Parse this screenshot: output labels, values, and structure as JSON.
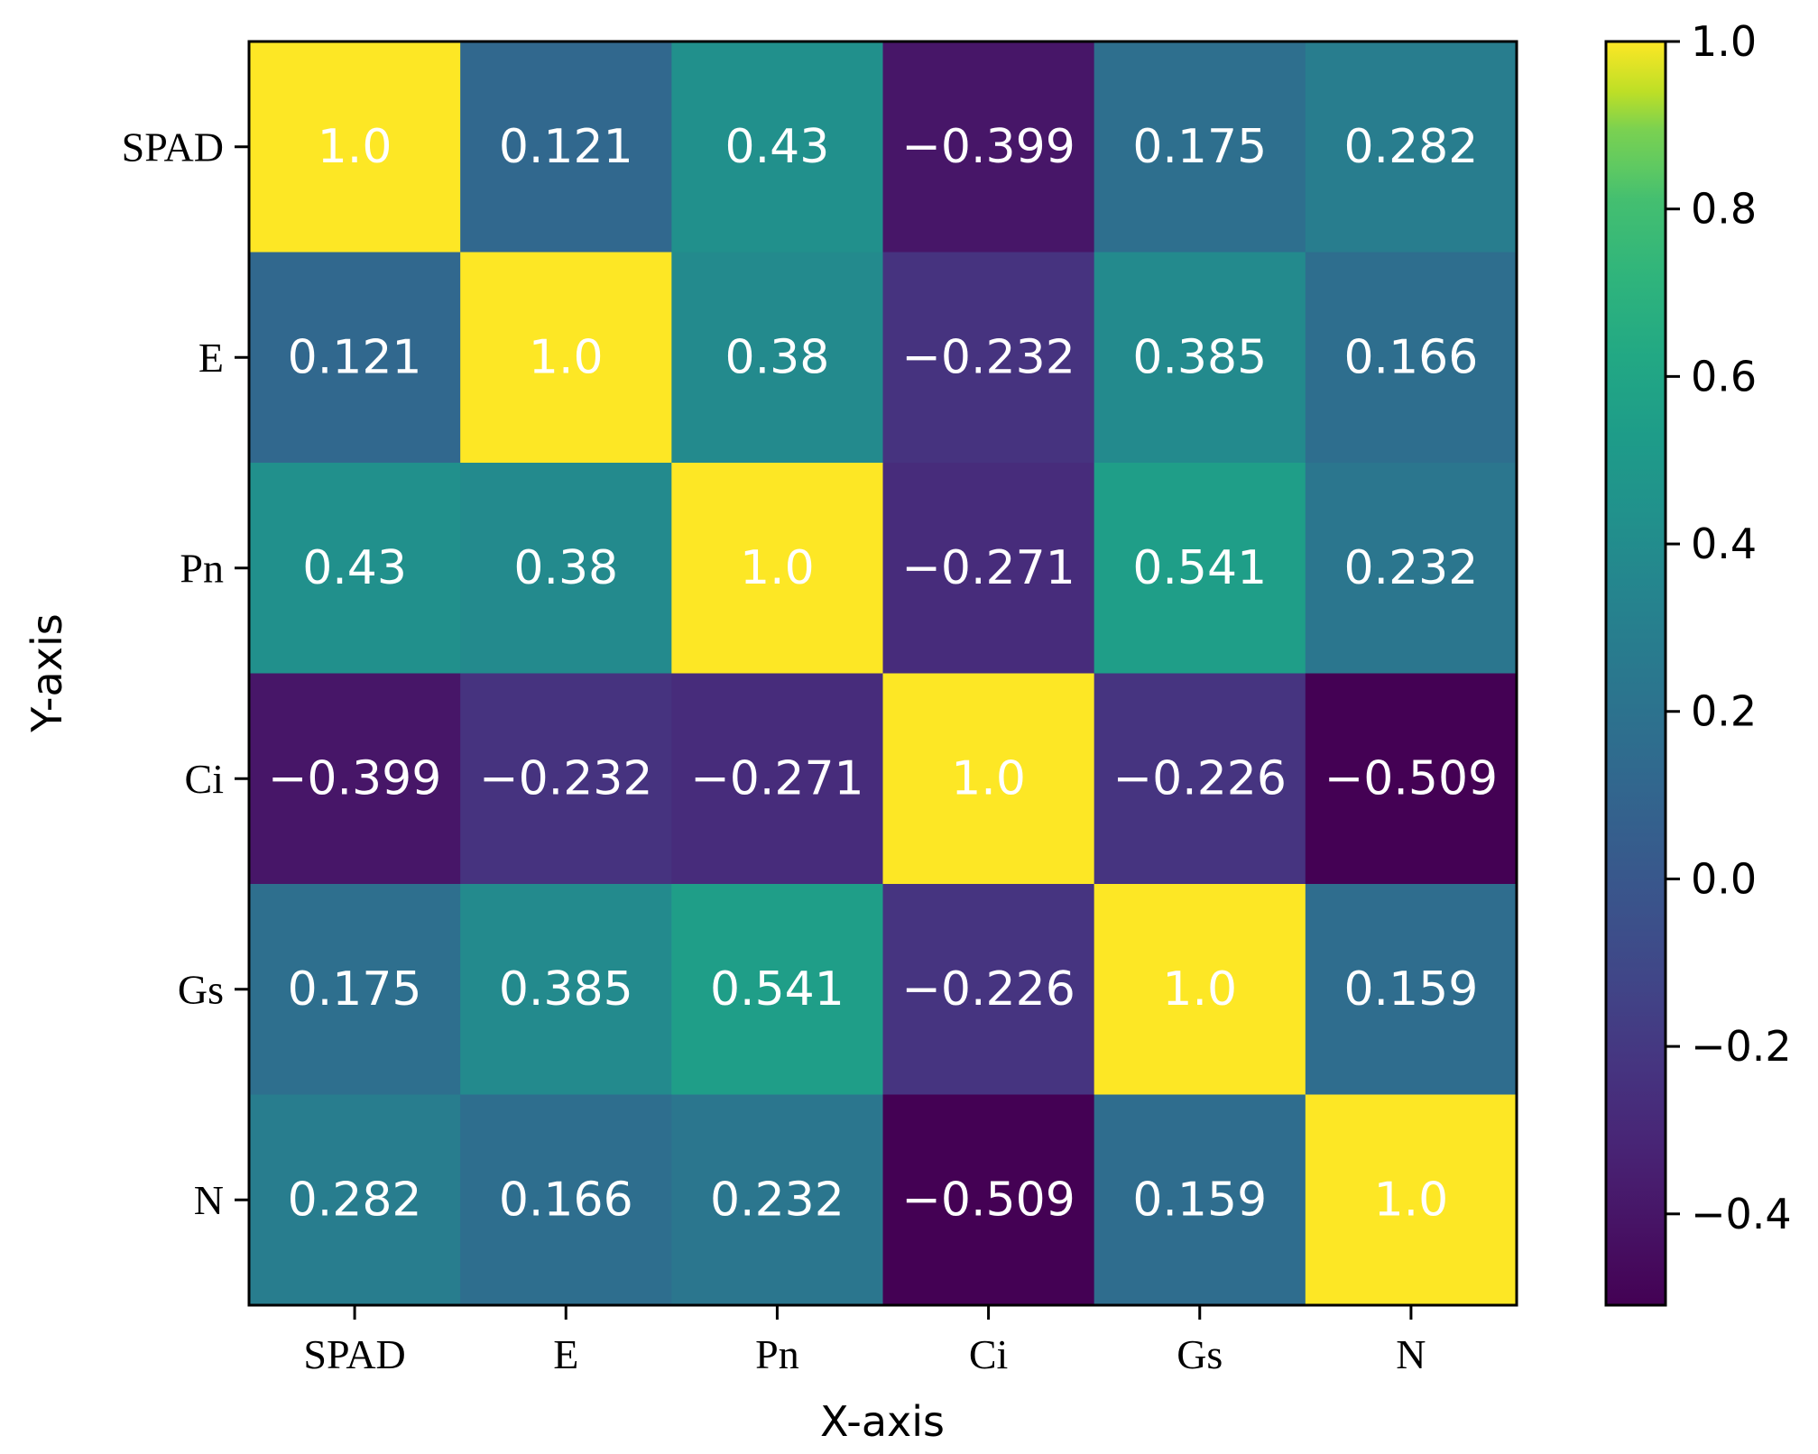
{
  "chart_data": {
    "type": "heatmap",
    "title": "",
    "xlabel": "X-axis",
    "ylabel": "Y-axis",
    "x_categories": [
      "SPAD",
      "E",
      "Pn",
      "Ci",
      "Gs",
      "N"
    ],
    "y_categories": [
      "SPAD",
      "E",
      "Pn",
      "Ci",
      "Gs",
      "N"
    ],
    "values": [
      [
        1.0,
        0.121,
        0.43,
        -0.399,
        0.175,
        0.282
      ],
      [
        0.121,
        1.0,
        0.38,
        -0.232,
        0.385,
        0.166
      ],
      [
        0.43,
        0.38,
        1.0,
        -0.271,
        0.541,
        0.232
      ],
      [
        -0.399,
        -0.232,
        -0.271,
        1.0,
        -0.226,
        -0.509
      ],
      [
        0.175,
        0.385,
        0.541,
        -0.226,
        1.0,
        0.159
      ],
      [
        0.282,
        0.166,
        0.232,
        -0.509,
        0.159,
        1.0
      ]
    ],
    "cell_labels": [
      [
        "1.0",
        "0.121",
        "0.43",
        "−0.399",
        "0.175",
        "0.282"
      ],
      [
        "0.121",
        "1.0",
        "0.38",
        "−0.232",
        "0.385",
        "0.166"
      ],
      [
        "0.43",
        "0.38",
        "1.0",
        "−0.271",
        "0.541",
        "0.232"
      ],
      [
        "−0.399",
        "−0.232",
        "−0.271",
        "1.0",
        "−0.226",
        "−0.509"
      ],
      [
        "0.175",
        "0.385",
        "0.541",
        "−0.226",
        "1.0",
        "0.159"
      ],
      [
        "0.282",
        "0.166",
        "0.232",
        "−0.509",
        "0.159",
        "1.0"
      ]
    ],
    "colormap": "viridis",
    "vmin": -0.509,
    "vmax": 1.0,
    "colorbar": {
      "ticks": [
        1.0,
        0.8,
        0.6,
        0.4,
        0.2,
        0.0,
        -0.2,
        -0.4
      ],
      "tick_labels": [
        "1.0",
        "0.8",
        "0.6",
        "0.4",
        "0.2",
        "0.0",
        "−0.2",
        "−0.4"
      ]
    },
    "colors": {
      "cell_text": "#ffffff",
      "axes": "#000000",
      "background": "#ffffff"
    }
  }
}
